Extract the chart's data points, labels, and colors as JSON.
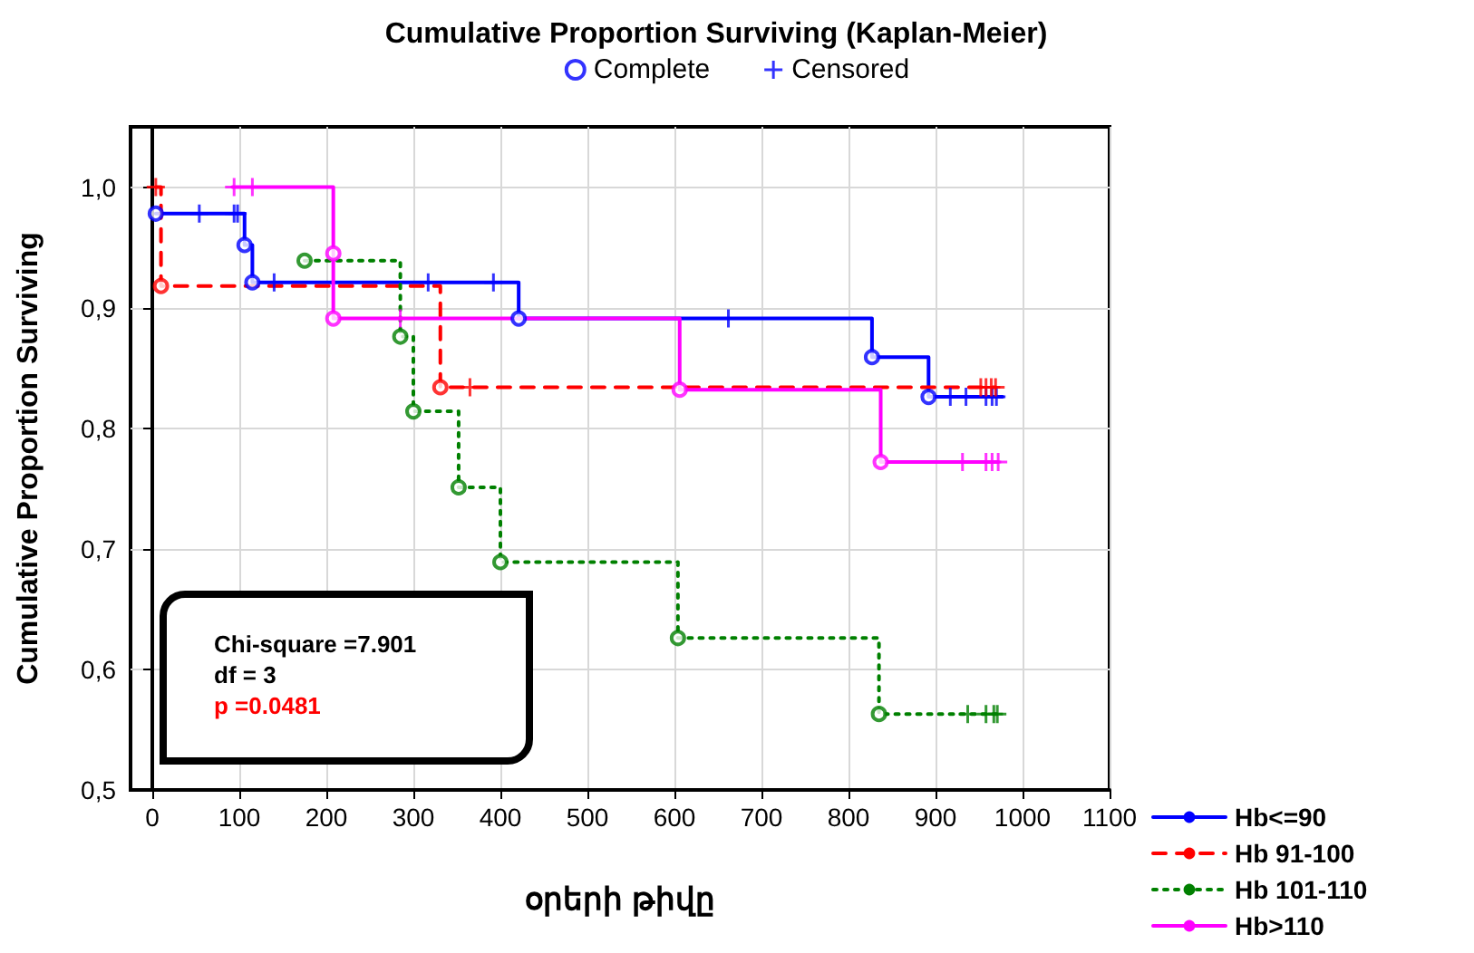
{
  "chart_data": {
    "type": "step",
    "title": "Cumulative Proportion Surviving (Kaplan-Meier)",
    "xlabel": "օրերի թիվը",
    "ylabel": "Cumulative Proportion Surviving",
    "xlim": [
      -25,
      1100
    ],
    "xticks": [
      0,
      100,
      200,
      300,
      400,
      500,
      600,
      700,
      800,
      900,
      1000,
      1100
    ],
    "ylim": [
      0.5,
      1.05
    ],
    "yticks": [
      {
        "value": 0.5,
        "label": "0,5"
      },
      {
        "value": 0.6,
        "label": "0,6"
      },
      {
        "value": 0.7,
        "label": "0,7"
      },
      {
        "value": 0.8,
        "label": "0,8"
      },
      {
        "value": 0.9,
        "label": "0,9"
      },
      {
        "value": 1.0,
        "label": "1,0"
      }
    ],
    "grid": true,
    "legend": "bottom right",
    "annotations": [
      "Chi-square =7.901",
      "df =  3",
      "p =0.0481"
    ],
    "series": [
      {
        "name": "Hb<=90",
        "color": "#0000ff",
        "line_style": "solid",
        "x": [
          4,
          106,
          115,
          421,
          827,
          892,
          977
        ],
        "values": [
          0.978,
          0.952,
          0.921,
          0.891,
          0.859,
          0.826,
          0.826
        ]
      },
      {
        "name": "Hb 91-100",
        "color": "#ff0000",
        "line_style": "dashed",
        "x": [
          4,
          10,
          331,
          969
        ],
        "values": [
          1.0,
          0.918,
          0.834,
          0.834
        ]
      },
      {
        "name": "Hb 101-110",
        "color": "#008000",
        "line_style": "dotted",
        "x": [
          175,
          285,
          300,
          352,
          400,
          604,
          835,
          971
        ],
        "values": [
          0.939,
          0.876,
          0.814,
          0.751,
          0.689,
          0.626,
          0.563,
          0.563
        ]
      },
      {
        "name": "Hb>110",
        "color": "#ff00ff",
        "line_style": "solid",
        "x": [
          92,
          208,
          208,
          606,
          837,
          972
        ],
        "values": [
          1.0,
          0.945,
          0.891,
          0.832,
          0.772,
          0.772
        ]
      },
      {
        "name": "Complete",
        "type": "scatter",
        "marker": "circle",
        "color": "#0000ff",
        "x": [
          4,
          106,
          115,
          421,
          827,
          892,
          10,
          331,
          175,
          285,
          300,
          352,
          400,
          604,
          835,
          208,
          208,
          606,
          837
        ],
        "values": [
          0.978,
          0.952,
          0.921,
          0.891,
          0.859,
          0.826,
          0.918,
          0.834,
          0.939,
          0.876,
          0.814,
          0.751,
          0.689,
          0.626,
          0.563,
          0.945,
          0.891,
          0.832,
          0.772
        ],
        "colors": [
          "#0000ff",
          "#0000ff",
          "#0000ff",
          "#0000ff",
          "#0000ff",
          "#0000ff",
          "#ff0000",
          "#ff0000",
          "#008000",
          "#008000",
          "#008000",
          "#008000",
          "#008000",
          "#008000",
          "#008000",
          "#ff00ff",
          "#ff00ff",
          "#ff00ff",
          "#ff00ff"
        ]
      },
      {
        "name": "Censored",
        "type": "scatter",
        "marker": "cross",
        "color": "#0000ff",
        "x": [
          54,
          94,
          98,
          140,
          317,
          392,
          662,
          917,
          935,
          958,
          965,
          970,
          4,
          365,
          952,
          958,
          964,
          969,
          937,
          958,
          967,
          971,
          94,
          115,
          285,
          931,
          958,
          965,
          972
        ],
        "values": [
          0.978,
          0.978,
          0.978,
          0.921,
          0.921,
          0.921,
          0.891,
          0.826,
          0.826,
          0.826,
          0.826,
          0.826,
          1.0,
          0.834,
          0.834,
          0.834,
          0.834,
          0.834,
          0.563,
          0.563,
          0.563,
          0.563,
          1.0,
          1.0,
          0.891,
          0.772,
          0.772,
          0.772,
          0.772
        ],
        "colors": [
          "#0000ff",
          "#0000ff",
          "#0000ff",
          "#0000ff",
          "#0000ff",
          "#0000ff",
          "#0000ff",
          "#0000ff",
          "#0000ff",
          "#0000ff",
          "#0000ff",
          "#0000ff",
          "#ff0000",
          "#ff0000",
          "#ff0000",
          "#ff0000",
          "#ff0000",
          "#ff0000",
          "#008000",
          "#008000",
          "#008000",
          "#008000",
          "#ff00ff",
          "#ff00ff",
          "#ff00ff",
          "#ff00ff",
          "#ff00ff",
          "#ff00ff",
          "#ff00ff"
        ]
      }
    ]
  }
}
